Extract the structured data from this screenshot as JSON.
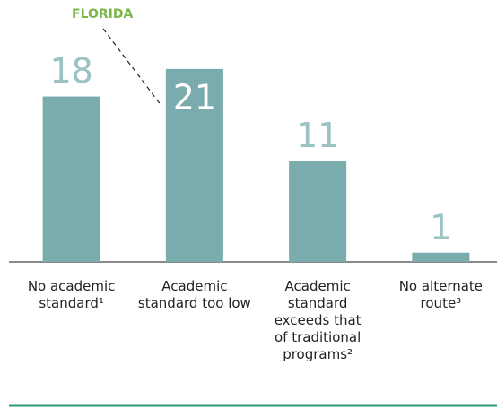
{
  "chart_data": {
    "type": "bar",
    "categories": [
      "No academic standard¹",
      "Academic standard too low",
      "Academic standard exceeds that of traditional programs²",
      "No alternate route³"
    ],
    "values": [
      18,
      21,
      11,
      1
    ],
    "color": "#7aabad",
    "ylim": [
      0,
      28.5
    ],
    "annotation": "FLORIDA"
  }
}
